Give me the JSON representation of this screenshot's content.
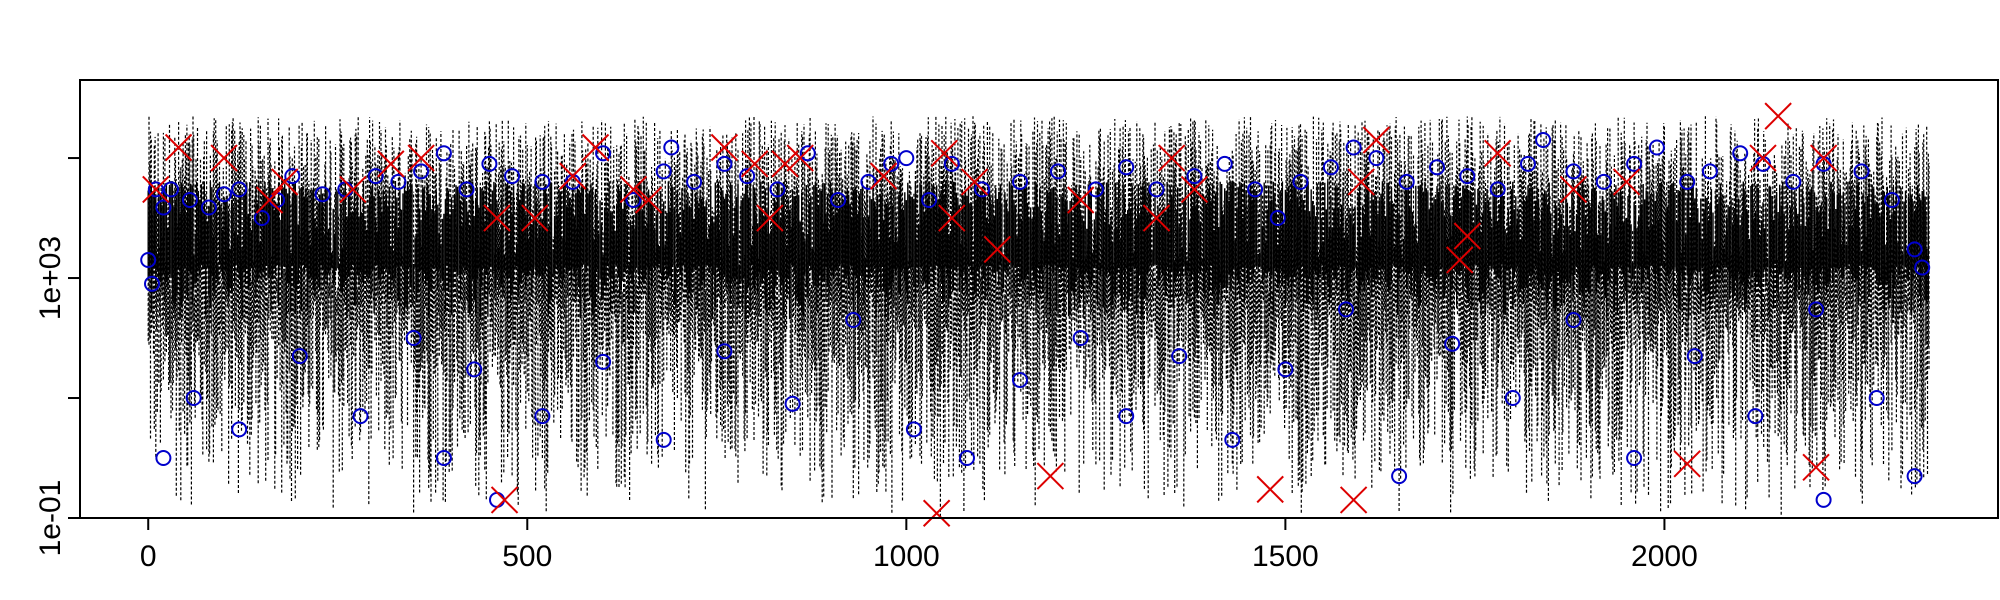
{
  "chart_data": {
    "type": "line",
    "title": "",
    "xlabel": "",
    "ylabel": "",
    "x_ticks": [
      0,
      500,
      1000,
      1500,
      2000
    ],
    "x_tick_labels": [
      "0",
      "500",
      "1000",
      "1500",
      "2000"
    ],
    "y_scale": "log",
    "y_ticks": [
      0.1,
      1000
    ],
    "y_tick_labels": [
      "1e-01",
      "1e+03"
    ],
    "y_minor_ticks": [
      10,
      100000
    ],
    "xlim": [
      -90,
      2440
    ],
    "ylim": [
      0.1,
      2000000
    ],
    "grid": false,
    "legend": "none",
    "series": [
      {
        "style": "dotted-black-vertical-lines",
        "color": "#000000",
        "description_of_values": "dense per-index values spanning roughly 0.1 to 1e6 on log scale",
        "n_points": 2350,
        "typical_range": [
          0.1,
          500000
        ]
      },
      {
        "style": "blue-open-circles",
        "color": "#0000cc",
        "points": [
          [
            0,
            2000
          ],
          [
            5,
            800
          ],
          [
            10,
            30000
          ],
          [
            20,
            15000
          ],
          [
            30,
            30000
          ],
          [
            55,
            20000
          ],
          [
            80,
            15000
          ],
          [
            100,
            25000
          ],
          [
            120,
            30000
          ],
          [
            150,
            10000
          ],
          [
            170,
            20000
          ],
          [
            190,
            50000
          ],
          [
            230,
            25000
          ],
          [
            260,
            30000
          ],
          [
            300,
            50000
          ],
          [
            330,
            40000
          ],
          [
            360,
            60000
          ],
          [
            390,
            120000
          ],
          [
            420,
            30000
          ],
          [
            450,
            80000
          ],
          [
            480,
            50000
          ],
          [
            520,
            40000
          ],
          [
            560,
            40000
          ],
          [
            600,
            120000
          ],
          [
            640,
            20000
          ],
          [
            680,
            60000
          ],
          [
            690,
            150000
          ],
          [
            720,
            40000
          ],
          [
            760,
            80000
          ],
          [
            790,
            50000
          ],
          [
            830,
            30000
          ],
          [
            870,
            120000
          ],
          [
            910,
            20000
          ],
          [
            950,
            40000
          ],
          [
            980,
            80000
          ],
          [
            1000,
            100000
          ],
          [
            1030,
            20000
          ],
          [
            1060,
            80000
          ],
          [
            1100,
            30000
          ],
          [
            1150,
            40000
          ],
          [
            1200,
            60000
          ],
          [
            1250,
            30000
          ],
          [
            1290,
            70000
          ],
          [
            1330,
            30000
          ],
          [
            1380,
            50000
          ],
          [
            1420,
            80000
          ],
          [
            1460,
            30000
          ],
          [
            1490,
            10000
          ],
          [
            1520,
            40000
          ],
          [
            1560,
            70000
          ],
          [
            1590,
            150000
          ],
          [
            1620,
            100000
          ],
          [
            1660,
            40000
          ],
          [
            1700,
            70000
          ],
          [
            1740,
            50000
          ],
          [
            1780,
            30000
          ],
          [
            1820,
            80000
          ],
          [
            1840,
            200000
          ],
          [
            1880,
            60000
          ],
          [
            1920,
            40000
          ],
          [
            1960,
            80000
          ],
          [
            1990,
            150000
          ],
          [
            2030,
            40000
          ],
          [
            2060,
            60000
          ],
          [
            2100,
            120000
          ],
          [
            2130,
            80000
          ],
          [
            2170,
            40000
          ],
          [
            2210,
            80000
          ],
          [
            2260,
            60000
          ],
          [
            2300,
            20000
          ],
          [
            2330,
            3000
          ],
          [
            2340,
            1500
          ],
          [
            20,
            1
          ],
          [
            60,
            10
          ],
          [
            120,
            3
          ],
          [
            200,
            50
          ],
          [
            280,
            5
          ],
          [
            350,
            100
          ],
          [
            390,
            1
          ],
          [
            430,
            30
          ],
          [
            460,
            0.2
          ],
          [
            520,
            5
          ],
          [
            600,
            40
          ],
          [
            680,
            2
          ],
          [
            760,
            60
          ],
          [
            850,
            8
          ],
          [
            930,
            200
          ],
          [
            1010,
            3
          ],
          [
            1080,
            1
          ],
          [
            1150,
            20
          ],
          [
            1230,
            100
          ],
          [
            1290,
            5
          ],
          [
            1360,
            50
          ],
          [
            1430,
            2
          ],
          [
            1500,
            30
          ],
          [
            1580,
            300
          ],
          [
            1650,
            0.5
          ],
          [
            1720,
            80
          ],
          [
            1800,
            10
          ],
          [
            1880,
            200
          ],
          [
            1960,
            1
          ],
          [
            2040,
            50
          ],
          [
            2120,
            5
          ],
          [
            2200,
            300
          ],
          [
            2210,
            0.2
          ],
          [
            2280,
            10
          ],
          [
            2330,
            0.5
          ]
        ]
      },
      {
        "style": "red-x-markers",
        "color": "#dd0000",
        "points": [
          [
            10,
            30000
          ],
          [
            40,
            150000
          ],
          [
            100,
            100000
          ],
          [
            160,
            20000
          ],
          [
            180,
            40000
          ],
          [
            270,
            30000
          ],
          [
            320,
            80000
          ],
          [
            360,
            100000
          ],
          [
            460,
            10000
          ],
          [
            470,
            0.2
          ],
          [
            510,
            10000
          ],
          [
            560,
            50000
          ],
          [
            590,
            150000
          ],
          [
            640,
            30000
          ],
          [
            660,
            20000
          ],
          [
            760,
            150000
          ],
          [
            800,
            80000
          ],
          [
            820,
            10000
          ],
          [
            840,
            80000
          ],
          [
            860,
            100000
          ],
          [
            970,
            50000
          ],
          [
            1040,
            0.12
          ],
          [
            1050,
            120000
          ],
          [
            1060,
            10000
          ],
          [
            1090,
            40000
          ],
          [
            1120,
            3000
          ],
          [
            1190,
            0.5
          ],
          [
            1230,
            20000
          ],
          [
            1330,
            10000
          ],
          [
            1350,
            100000
          ],
          [
            1380,
            30000
          ],
          [
            1480,
            0.3
          ],
          [
            1590,
            0.2
          ],
          [
            1600,
            40000
          ],
          [
            1620,
            200000
          ],
          [
            1730,
            2000
          ],
          [
            1740,
            5000
          ],
          [
            1780,
            120000
          ],
          [
            1880,
            30000
          ],
          [
            1950,
            40000
          ],
          [
            2030,
            0.8
          ],
          [
            2130,
            100000
          ],
          [
            2150,
            500000
          ],
          [
            2200,
            0.7
          ],
          [
            2210,
            100000
          ]
        ]
      }
    ]
  }
}
